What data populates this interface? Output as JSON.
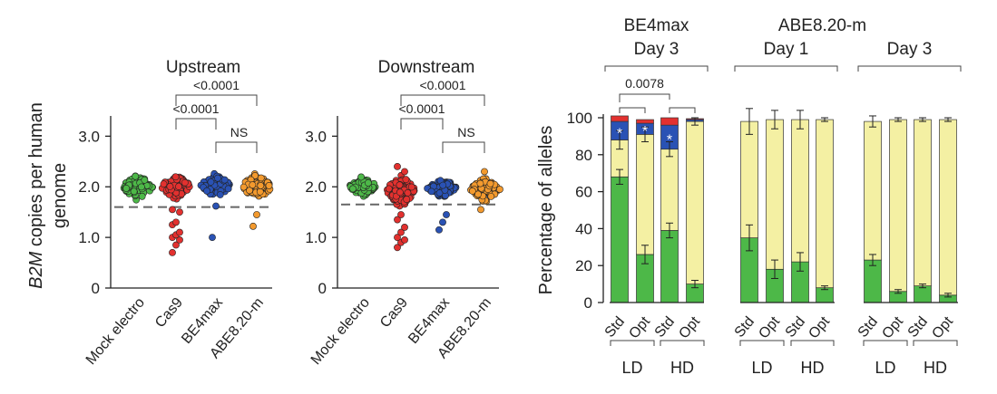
{
  "colors": {
    "green": "#4db848",
    "red": "#e2312f",
    "blue": "#2a52b4",
    "orange": "#f39a2e",
    "yellow": "#f4f0a3",
    "darkred": "#c62828",
    "axis": "#222222",
    "dash": "#666666"
  },
  "chart_data": [
    {
      "type": "scatter",
      "title": "Upstream",
      "ylabel_italic": "B2M",
      "ylabel_rest": " copies per human",
      "ylabel_line2": "genome",
      "ylim": [
        0,
        3.4
      ],
      "yticks": [
        "3.0",
        "2.0",
        "1.0",
        "0"
      ],
      "ytick_values": [
        3,
        2,
        1,
        0
      ],
      "threshold": 1.6,
      "categories": [
        "Mock electro",
        "Cas9",
        "BE4max",
        "ABE8.20-m"
      ],
      "series_colors": [
        "green",
        "red",
        "blue",
        "orange"
      ],
      "centers": [
        2.0,
        2.0,
        2.02,
        2.0
      ],
      "spread": [
        0.14,
        0.14,
        0.13,
        0.14
      ],
      "outliers": [
        [],
        [
          0.7,
          0.85,
          0.95,
          1.0,
          1.05,
          1.1,
          1.25,
          1.3,
          1.5,
          1.55
        ],
        [
          1.0,
          1.62
        ],
        [
          1.22,
          1.45
        ]
      ],
      "comparisons": [
        {
          "label": "<0.0001",
          "from": 1,
          "to": 3
        },
        {
          "label": "<0.0001",
          "from": 1,
          "to": 2
        },
        {
          "label": "NS",
          "from": 2,
          "to": 3
        }
      ]
    },
    {
      "type": "scatter",
      "title": "Downstream",
      "ylim": [
        0,
        3.4
      ],
      "yticks": [
        "3.0",
        "2.0",
        "1.0",
        "0"
      ],
      "ytick_values": [
        3,
        2,
        1,
        0
      ],
      "threshold": 1.65,
      "categories": [
        "Mock electro",
        "Cas9",
        "BE4max",
        "ABE8.20-m"
      ],
      "series_colors": [
        "green",
        "red",
        "blue",
        "orange"
      ],
      "centers": [
        2.0,
        1.92,
        1.97,
        1.95
      ],
      "spread": [
        0.1,
        0.18,
        0.1,
        0.12
      ],
      "outliers": [
        [],
        [
          0.8,
          0.9,
          0.95,
          1.0,
          1.1,
          1.2,
          1.35,
          1.45,
          2.3,
          2.4
        ],
        [
          1.15,
          1.3,
          1.45
        ],
        [
          1.55,
          2.3
        ]
      ],
      "comparisons": [
        {
          "label": "<0.0001",
          "from": 1,
          "to": 3
        },
        {
          "label": "<0.0001",
          "from": 1,
          "to": 2
        },
        {
          "label": "NS",
          "from": 2,
          "to": 3
        }
      ]
    },
    {
      "type": "bar",
      "ylabel": "Percentage of alleles",
      "ylim": [
        0,
        100
      ],
      "yticks": [
        0,
        20,
        40,
        60,
        80,
        100
      ],
      "group_headers": [
        {
          "lines": [
            "BE4max",
            "Day 3"
          ],
          "from": 0,
          "to": 3
        },
        {
          "lines": [
            "ABE8.20-m",
            "Day 1"
          ],
          "from": 4,
          "to": 7
        },
        {
          "lines": [
            "Day 3"
          ],
          "from": 8,
          "to": 11
        }
      ],
      "pvalue_brackets": [
        {
          "label": "0.0078",
          "from": 0,
          "to": 2
        }
      ],
      "small_brackets": [
        {
          "from": 0,
          "to": 1
        },
        {
          "from": 2,
          "to": 3
        }
      ],
      "bars": [
        {
          "label": "Std",
          "green": 68,
          "yellow": 20,
          "blue": 10,
          "red": 3,
          "star": true,
          "err_g": 4,
          "err_y": 5
        },
        {
          "label": "Opt",
          "green": 26,
          "yellow": 65,
          "blue": 6,
          "red": 2,
          "star": true,
          "err_g": 5,
          "err_y": 4
        },
        {
          "label": "Std",
          "green": 39,
          "yellow": 44,
          "blue": 13,
          "red": 4,
          "star": true,
          "err_g": 4,
          "err_y": 4
        },
        {
          "label": "Opt",
          "green": 10,
          "yellow": 88,
          "blue": 1,
          "red": 0.5,
          "star": false,
          "err_g": 2,
          "err_y": 2
        },
        {
          "label": "Std",
          "green": 35,
          "yellow": 63,
          "blue": 0,
          "red": 0,
          "star": false,
          "err_g": 7,
          "err_y": 7
        },
        {
          "label": "Opt",
          "green": 18,
          "yellow": 81,
          "blue": 0,
          "red": 0,
          "star": false,
          "err_g": 5,
          "err_y": 5
        },
        {
          "label": "Std",
          "green": 22,
          "yellow": 77,
          "blue": 0,
          "red": 0,
          "star": false,
          "err_g": 5,
          "err_y": 5
        },
        {
          "label": "Opt",
          "green": 8,
          "yellow": 91,
          "blue": 0,
          "red": 0,
          "star": false,
          "err_g": 1,
          "err_y": 1
        },
        {
          "label": "Std",
          "green": 23,
          "yellow": 75,
          "blue": 0,
          "red": 0,
          "star": false,
          "err_g": 3,
          "err_y": 3
        },
        {
          "label": "Opt",
          "green": 6,
          "yellow": 93,
          "blue": 0,
          "red": 0,
          "star": false,
          "err_g": 1,
          "err_y": 1
        },
        {
          "label": "Std",
          "green": 9,
          "yellow": 90,
          "blue": 0,
          "red": 0,
          "star": false,
          "err_g": 1,
          "err_y": 1
        },
        {
          "label": "Opt",
          "green": 4,
          "yellow": 95,
          "blue": 0,
          "red": 0,
          "star": false,
          "err_g": 1,
          "err_y": 1
        }
      ],
      "dose_labels": [
        "LD",
        "HD",
        "LD",
        "HD",
        "LD",
        "HD"
      ]
    }
  ]
}
